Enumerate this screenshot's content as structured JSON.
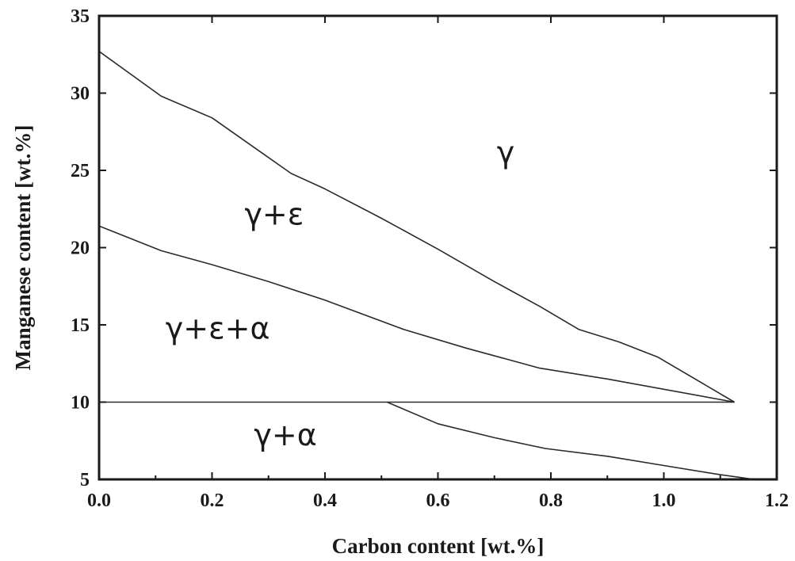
{
  "chart_data": {
    "type": "line",
    "title": "",
    "xlabel": "Carbon content [wt.%]",
    "ylabel": "Manganese content [wt.%]",
    "xlim": [
      0.0,
      1.2
    ],
    "ylim": [
      5,
      35
    ],
    "x_ticks": [
      "0.0",
      "0.2",
      "0.4",
      "0.6",
      "0.8",
      "1.0",
      "1.2"
    ],
    "y_ticks": [
      "5",
      "10",
      "15",
      "20",
      "25",
      "30",
      "35"
    ],
    "grid": false,
    "legend": "none",
    "line_color": "#2a2a2a",
    "series": [
      {
        "points": [
          [
            0.0,
            32.7
          ],
          [
            0.11,
            29.8
          ],
          [
            0.2,
            28.4
          ],
          [
            0.27,
            26.6
          ],
          [
            0.34,
            24.8
          ],
          [
            0.4,
            23.8
          ],
          [
            0.5,
            21.9
          ],
          [
            0.6,
            19.9
          ],
          [
            0.7,
            17.8
          ],
          [
            0.78,
            16.2
          ],
          [
            0.85,
            14.7
          ],
          [
            0.92,
            13.9
          ],
          [
            0.99,
            12.9
          ],
          [
            1.125,
            10.0
          ]
        ]
      },
      {
        "points": [
          [
            0.0,
            21.4
          ],
          [
            0.11,
            19.8
          ],
          [
            0.2,
            18.9
          ],
          [
            0.3,
            17.8
          ],
          [
            0.4,
            16.6
          ],
          [
            0.54,
            14.7
          ],
          [
            0.65,
            13.5
          ],
          [
            0.78,
            12.2
          ],
          [
            0.9,
            11.5
          ],
          [
            1.125,
            10.0
          ]
        ]
      },
      {
        "points": [
          [
            0.0,
            10.0
          ],
          [
            1.125,
            10.0
          ]
        ]
      },
      {
        "points": [
          [
            0.51,
            10.0
          ],
          [
            0.6,
            8.6
          ],
          [
            0.7,
            7.7
          ],
          [
            0.79,
            7.0
          ],
          [
            0.9,
            6.5
          ],
          [
            1.0,
            5.9
          ],
          [
            1.1,
            5.3
          ],
          [
            1.16,
            5.0
          ]
        ]
      }
    ],
    "annotations": [
      {
        "text": "γ",
        "x": 0.72,
        "y": 25.5
      },
      {
        "text": "γ+ε",
        "x": 0.31,
        "y": 21.5
      },
      {
        "text": "γ+ε+α",
        "x": 0.21,
        "y": 14.1
      },
      {
        "text": "γ+α",
        "x": 0.33,
        "y": 7.2
      }
    ]
  }
}
